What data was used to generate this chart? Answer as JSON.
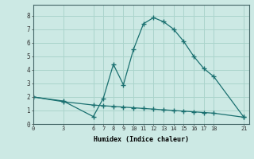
{
  "xlabel": "Humidex (Indice chaleur)",
  "bg_color": "#cce9e4",
  "grid_color": "#aad4cc",
  "line_color": "#1a7070",
  "line1_x": [
    0,
    3,
    6,
    7,
    8,
    9,
    10,
    11,
    12,
    13,
    14,
    15,
    16,
    17,
    18,
    21
  ],
  "line1_y": [
    2.0,
    1.7,
    0.55,
    1.9,
    4.4,
    2.9,
    5.5,
    7.4,
    7.85,
    7.55,
    7.0,
    6.1,
    5.0,
    4.1,
    3.5,
    0.5
  ],
  "line2_x": [
    0,
    3,
    6,
    7,
    8,
    9,
    10,
    11,
    12,
    13,
    14,
    15,
    16,
    17,
    18,
    21
  ],
  "line2_y": [
    2.0,
    1.65,
    1.4,
    1.35,
    1.3,
    1.25,
    1.2,
    1.15,
    1.1,
    1.05,
    1.0,
    0.95,
    0.9,
    0.85,
    0.8,
    0.5
  ],
  "xtick_labels": [
    "0",
    "3",
    "6",
    "7",
    "8",
    "9",
    "10",
    "11",
    "12",
    "13",
    "14",
    "15",
    "16",
    "17",
    "18",
    "21"
  ],
  "xtick_vals": [
    0,
    3,
    6,
    7,
    8,
    9,
    10,
    11,
    12,
    13,
    14,
    15,
    16,
    17,
    18,
    21
  ],
  "ytick_vals": [
    0,
    1,
    2,
    3,
    4,
    5,
    6,
    7,
    8
  ],
  "xlim": [
    0,
    21.5
  ],
  "ylim": [
    0,
    8.8
  ]
}
